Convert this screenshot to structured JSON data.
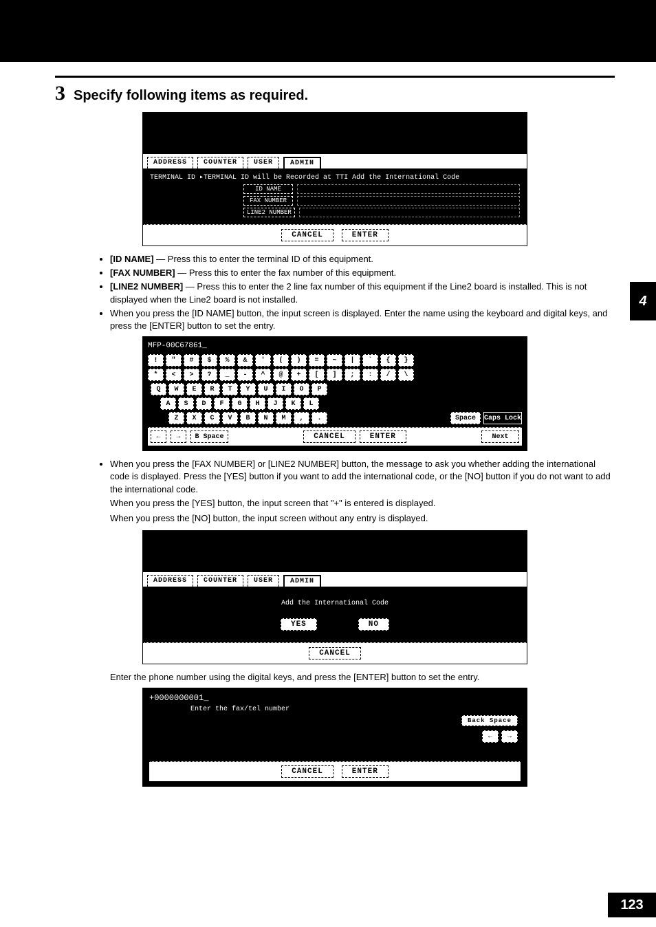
{
  "page": {
    "chapter_tab": "4",
    "number": "123"
  },
  "step": {
    "num": "3",
    "title": "Specify following items as required."
  },
  "shot1": {
    "tabs": [
      "ADDRESS",
      "COUNTER",
      "USER",
      "ADMIN"
    ],
    "active_tab": 3,
    "breadcrumb": "TERMINAL ID ▸TERMINAL ID will be Recorded at TTI Add the International Code",
    "fields": [
      "ID NAME",
      "FAX NUMBER",
      "LINE2 NUMBER"
    ],
    "buttons": [
      "CANCEL",
      "ENTER"
    ]
  },
  "bullets1": [
    {
      "term": "[ID NAME]",
      "rest": " — Press this to enter the terminal ID of this equipment."
    },
    {
      "term": "[FAX NUMBER]",
      "rest": " — Press this to enter the fax number of this equipment."
    },
    {
      "term": "[LINE2 NUMBER]",
      "rest": " — Press this to enter the 2 line fax number of this equipment if the Line2 board is installed. This is not displayed when the Line2 board is not installed."
    }
  ],
  "bullet2": "When you press the [ID NAME] button, the input screen is displayed.  Enter the name using the keyboard and digital keys, and press the [ENTER] button to set the entry.",
  "kbd": {
    "title": "MFP-00C67861_",
    "rows": [
      [
        "!",
        "\"",
        "#",
        "$",
        "%",
        "&",
        "'",
        "(",
        ")",
        "=",
        "~",
        "|",
        "`",
        "{",
        "}"
      ],
      [
        "*",
        "<",
        ">",
        "?",
        "_",
        "-",
        "^",
        "@",
        "+",
        "[",
        "]",
        ";",
        ":",
        "/",
        "\\"
      ],
      [
        "Q",
        "W",
        "E",
        "R",
        "T",
        "Y",
        "U",
        "I",
        "O",
        "P"
      ],
      [
        "A",
        "S",
        "D",
        "F",
        "G",
        "H",
        "J",
        "K",
        "L"
      ],
      [
        "Z",
        "X",
        "C",
        "V",
        "B",
        "N",
        "M",
        ",",
        "."
      ]
    ],
    "side": [
      "Space",
      "Caps Lock"
    ],
    "footer_left": [
      "←",
      "→",
      "B Space"
    ],
    "footer_center": [
      "CANCEL",
      "ENTER"
    ],
    "footer_right": [
      "Next"
    ]
  },
  "bullet3": "When you press the [FAX NUMBER] or [LINE2 NUMBER] button, the message to ask you whether adding the international code is displayed.  Press the [YES] button if you want to add the international code, or the [NO] button if you do not want to add the international code.",
  "after3a": "When you press the [YES] button, the input screen that \"+\" is entered is displayed.",
  "after3b": "When you press the [NO] button, the input screen without any entry is displayed.",
  "shot3": {
    "tabs": [
      "ADDRESS",
      "COUNTER",
      "USER",
      "ADMIN"
    ],
    "active_tab": 3,
    "prompt": "Add the International Code",
    "buttons": [
      "YES",
      "NO"
    ],
    "footer": [
      "CANCEL"
    ]
  },
  "after_shot3": "Enter the phone number using the digital keys, and press the [ENTER] button to set the entry.",
  "shot4": {
    "value": "+0000000001_",
    "prompt": "Enter the fax/tel number",
    "side": {
      "backspace": "Back Space",
      "arrows": [
        "←",
        "→"
      ]
    },
    "footer": [
      "CANCEL",
      "ENTER"
    ]
  },
  "colors": {
    "bg": "#ffffff",
    "ink": "#000000"
  }
}
